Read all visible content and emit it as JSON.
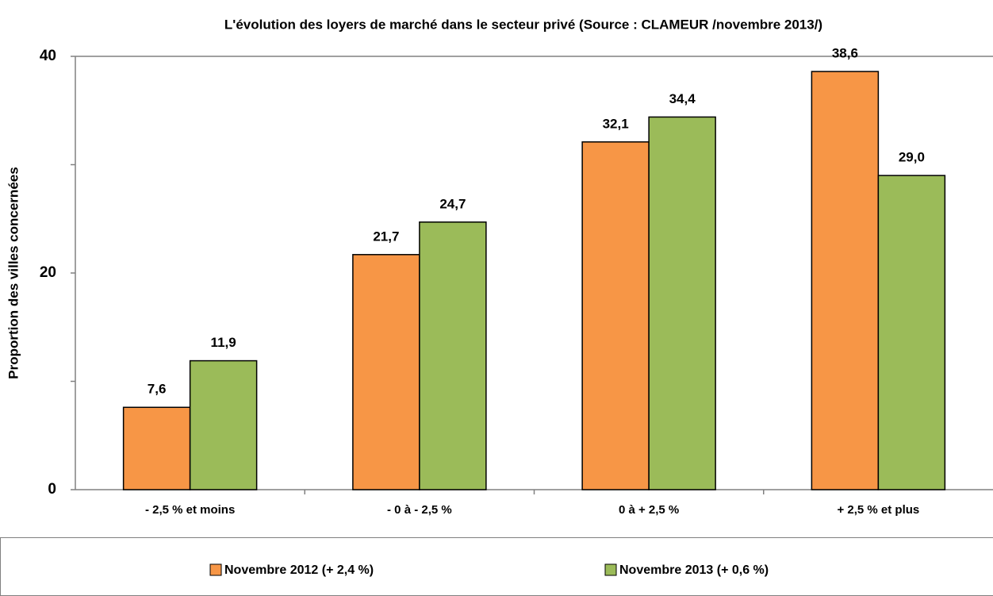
{
  "chart_data": {
    "type": "bar",
    "title": "L'évolution des loyers de marché dans le secteur privé (Source : CLAMEUR /novembre 2013/)",
    "y_label": "Proportion des villes concernées",
    "categories": [
      "- 2,5 % et moins",
      "- 0 à - 2,5 %",
      "0 à + 2,5 %",
      "+ 2,5 % et plus"
    ],
    "series": [
      {
        "name": "Novembre 2012 (+ 2,4 %)",
        "color": "#f79646",
        "values": [
          7.6,
          21.7,
          32.1,
          38.6
        ],
        "value_labels": [
          "7,6",
          "21,7",
          "32,1",
          "38,6"
        ]
      },
      {
        "name": "Novembre 2013 (+ 0,6 %)",
        "color": "#9bbb59",
        "values": [
          11.9,
          24.7,
          34.4,
          29.0
        ],
        "value_labels": [
          "11,9",
          "24,7",
          "34,4",
          "29,0"
        ]
      }
    ],
    "ylim": [
      0,
      40
    ],
    "yticks": [
      0,
      20,
      40
    ],
    "yminorticks": [
      10,
      30
    ],
    "grid": false,
    "legend": "bottom"
  }
}
